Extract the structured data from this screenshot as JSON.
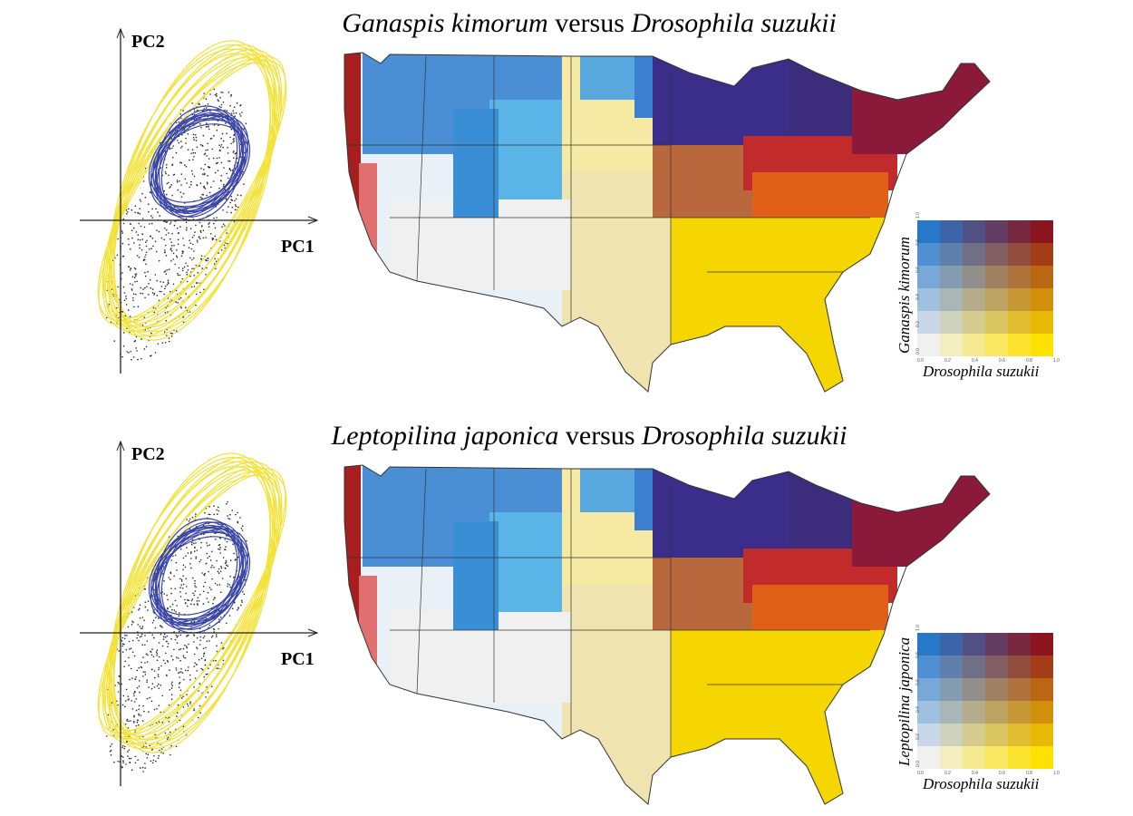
{
  "panels": [
    {
      "title": {
        "species_a": "Ganaspis kimorum",
        "connector": " versus ",
        "species_b": "Drosophila suzukii"
      },
      "pca": {
        "y_axis_label": "PC2",
        "x_axis_label": "PC1"
      },
      "legend": {
        "y_label": "Ganaspis kimorum",
        "x_label": "Drosophila suzukii",
        "x_ticks": [
          "0.0",
          "0.2",
          "0.4",
          "0.6",
          "0.8",
          "1.0"
        ],
        "y_ticks": [
          "0.0",
          "0.2",
          "0.4",
          "0.6",
          "0.8",
          "1.0"
        ]
      }
    },
    {
      "title": {
        "species_a": "Leptopilina japonica",
        "connector": " versus ",
        "species_b": "Drosophila suzukii"
      },
      "pca": {
        "y_axis_label": "PC2",
        "x_axis_label": "PC1"
      },
      "legend": {
        "y_label": "Leptopilina japonica",
        "x_label": "Drosophila suzukii",
        "x_ticks": [
          "0.0",
          "0.2",
          "0.4",
          "0.6",
          "0.8",
          "1.0"
        ],
        "y_ticks": [
          "0.0",
          "0.2",
          "0.4",
          "0.6",
          "0.8",
          "1.0"
        ]
      }
    }
  ]
}
